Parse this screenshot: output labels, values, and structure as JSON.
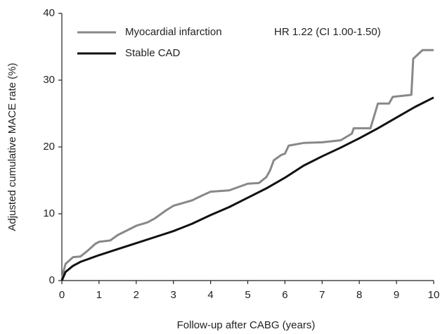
{
  "chart_data": {
    "type": "line",
    "x_label": "Follow-up after CABG (years)",
    "y_label": "Adjusted cumulative MACE rate (%)",
    "annotation": "HR 1.22 (CI 1.00-1.50)",
    "xlim": [
      0,
      10
    ],
    "xticks": [
      0,
      1,
      2,
      3,
      4,
      5,
      6,
      7,
      8,
      9,
      10
    ],
    "ylim": [
      0,
      40
    ],
    "yticks": [
      0,
      10,
      20,
      30,
      40
    ],
    "grid": false,
    "legend": "top-left",
    "series": [
      {
        "name": "Myocardial infarction",
        "color": "#888888",
        "x": [
          0,
          0.05,
          0.1,
          0.3,
          0.5,
          0.7,
          0.9,
          1.0,
          1.3,
          1.5,
          2.0,
          2.3,
          2.5,
          2.8,
          3.0,
          3.5,
          3.8,
          4.0,
          4.5,
          5.0,
          5.3,
          5.5,
          5.6,
          5.7,
          5.9,
          6.0,
          6.1,
          6.5,
          7.0,
          7.5,
          7.8,
          7.85,
          8.3,
          8.5,
          8.8,
          8.9,
          9.4,
          9.45,
          9.7,
          10.0
        ],
        "values": [
          0,
          1.5,
          2.5,
          3.5,
          3.6,
          4.5,
          5.5,
          5.8,
          6.0,
          6.8,
          8.2,
          8.7,
          9.3,
          10.5,
          11.2,
          12.0,
          12.8,
          13.3,
          13.5,
          14.5,
          14.6,
          15.5,
          16.5,
          18.0,
          18.8,
          19.0,
          20.2,
          20.6,
          20.7,
          21.0,
          22.0,
          22.8,
          22.8,
          26.5,
          26.5,
          27.5,
          27.8,
          33.2,
          34.5,
          34.5
        ]
      },
      {
        "name": "Stable CAD",
        "color": "#111111",
        "x": [
          0,
          0.1,
          0.3,
          0.5,
          1,
          1.5,
          2,
          2.5,
          3,
          3.5,
          4,
          4.5,
          5,
          5.5,
          6,
          6.5,
          7,
          7.5,
          8,
          8.5,
          9,
          9.5,
          10
        ],
        "values": [
          0,
          1.3,
          2.2,
          2.8,
          3.8,
          4.7,
          5.6,
          6.5,
          7.4,
          8.5,
          9.8,
          11.0,
          12.4,
          13.8,
          15.4,
          17.2,
          18.6,
          19.9,
          21.3,
          22.8,
          24.4,
          26.0,
          27.4
        ]
      }
    ]
  }
}
